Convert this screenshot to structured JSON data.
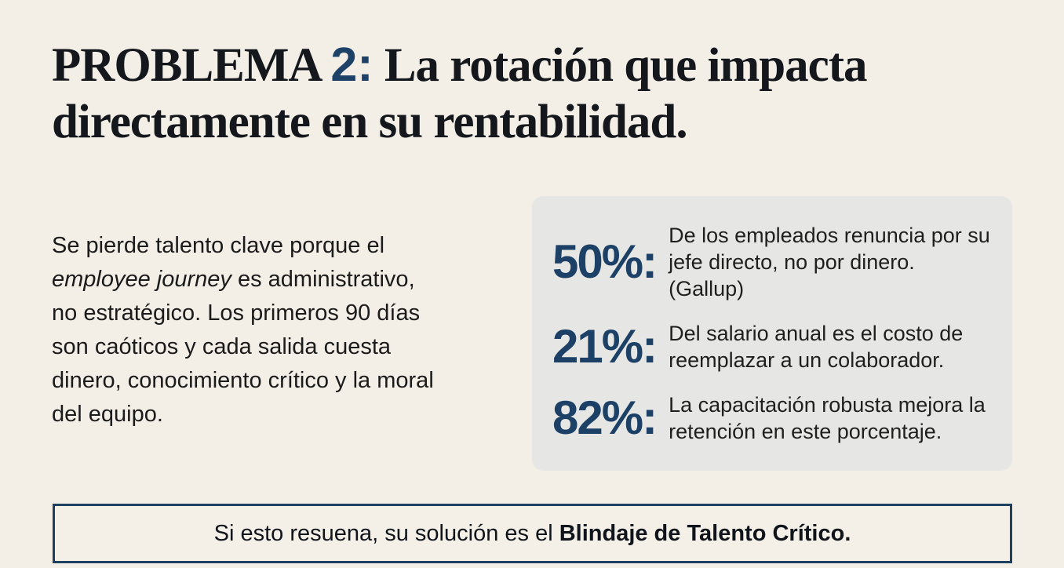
{
  "slide": {
    "title": {
      "line1_prefix": "PROBLEMA ",
      "line1_accent": "2:",
      "line1_rest": " La rotación que impacta",
      "line2": "directamente en su rentabilidad."
    },
    "paragraph": {
      "lines": [
        {
          "text": "Se pierde talento clave porque el"
        },
        {
          "italic": "employee journey",
          "text": " es administrativo,"
        },
        {
          "text": "no estratégico. Los primeros 90 días"
        },
        {
          "text": "son caóticos y cada salida cuesta"
        },
        {
          "text": "dinero, conocimiento crítico y la moral"
        },
        {
          "text": "del equipo."
        }
      ]
    },
    "stats": {
      "items": [
        {
          "value": "50%:",
          "text": "De los empleados renuncia por su jefe directo, no por dinero. (Gallup)"
        },
        {
          "value": "21%:",
          "text": "Del salario anual es el costo de reemplazar a un colaborador."
        },
        {
          "value": "82%:",
          "text": "La capacitación robusta mejora la retención en este porcentaje."
        }
      ]
    },
    "banner": {
      "text_normal": "Si esto resuena, su solución es el ",
      "text_bold": "Blindaje de Talento Crítico."
    },
    "colors": {
      "page_background": "#f3efe7",
      "panel_background": "#e6e7e4",
      "accent_navy": "#1c4066",
      "banner_border": "#20405f",
      "title_text": "#14171c",
      "body_text": "#1b1b1b"
    }
  }
}
